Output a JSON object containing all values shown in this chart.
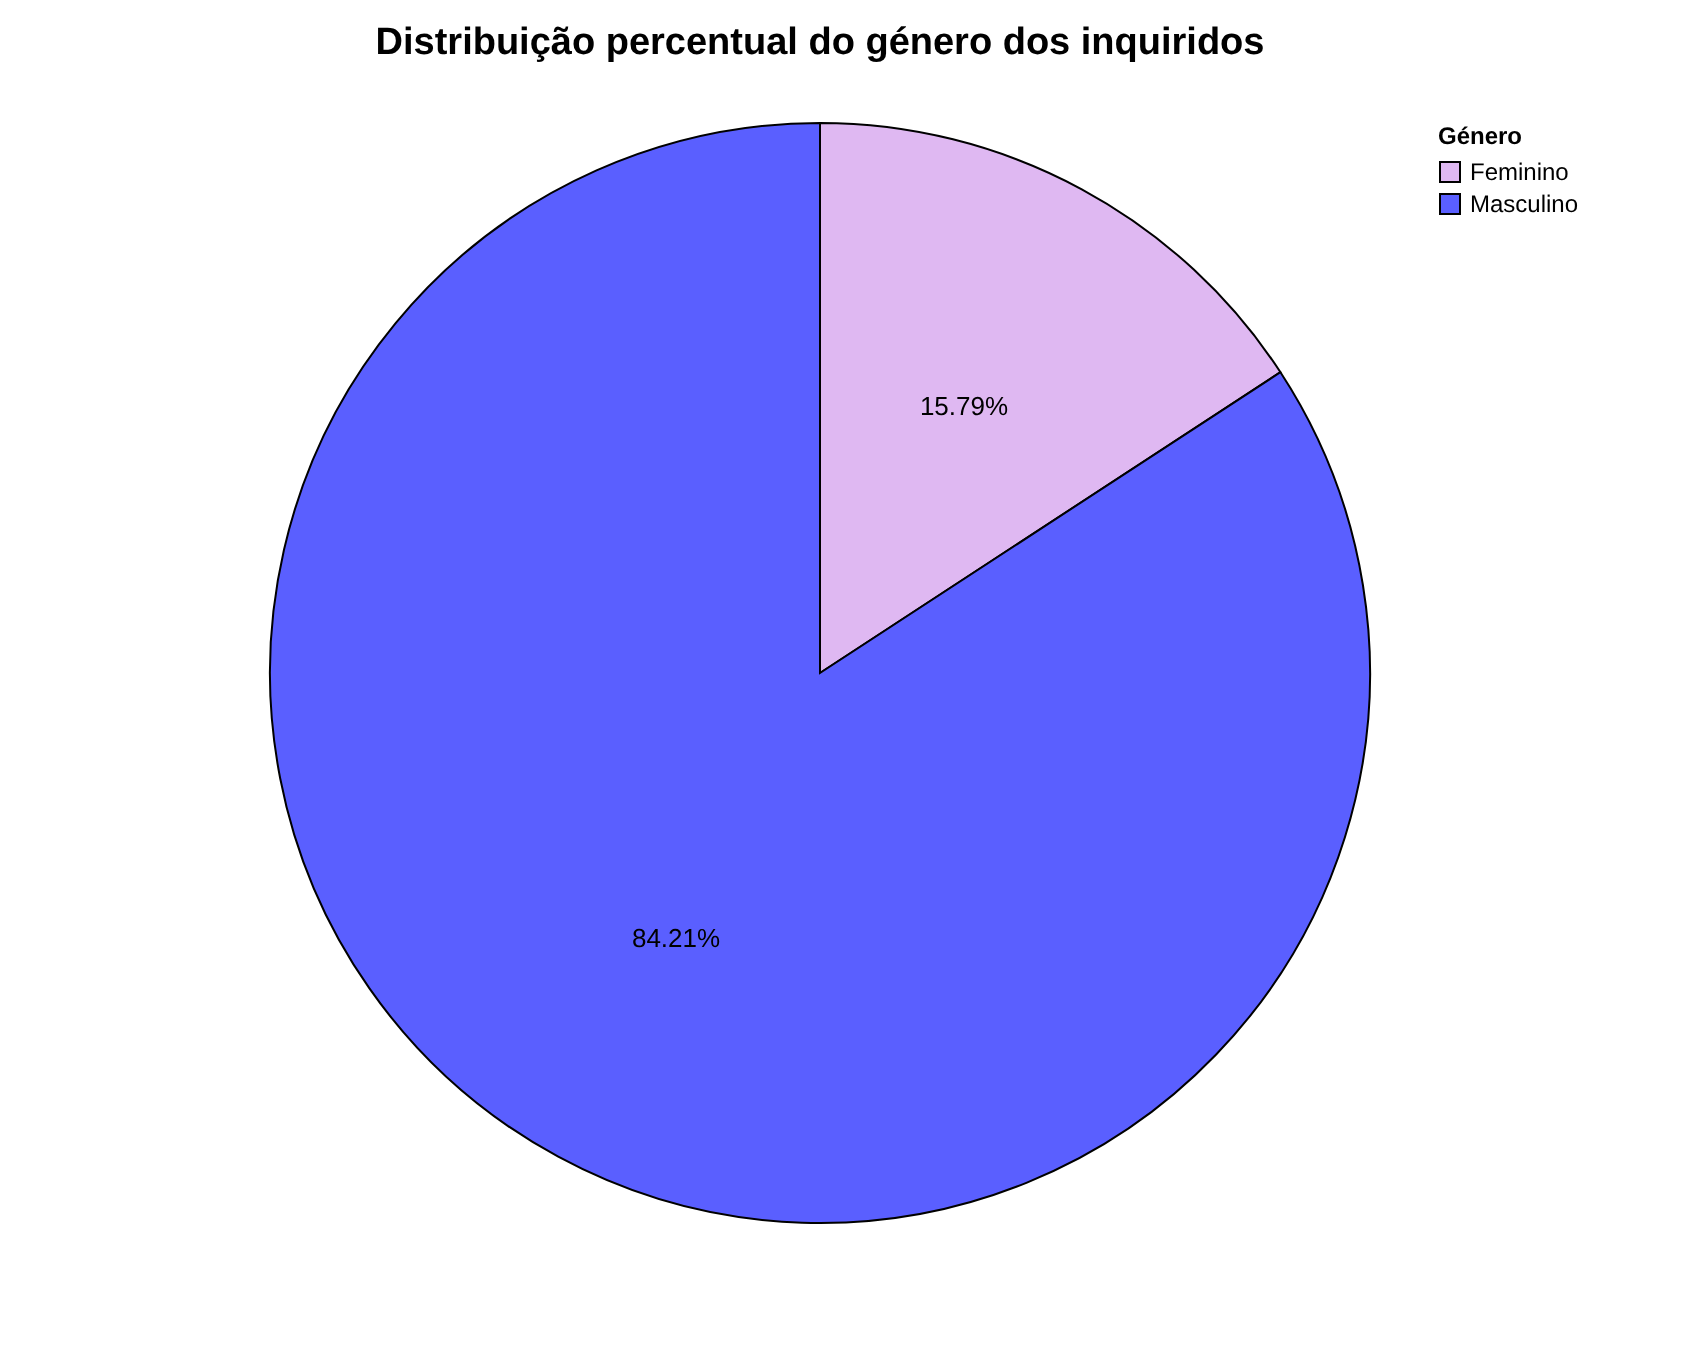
{
  "chart_data": {
    "type": "pie",
    "title": "Distribuição percentual do género dos inquiridos",
    "legend_title": "Género",
    "categories": [
      "Feminino",
      "Masculino"
    ],
    "values": [
      15.79,
      84.21
    ],
    "colors": [
      "#dfb8f2",
      "#5a5fff"
    ],
    "value_labels": [
      "15.79%",
      "84.21%"
    ],
    "legend": "top right"
  }
}
